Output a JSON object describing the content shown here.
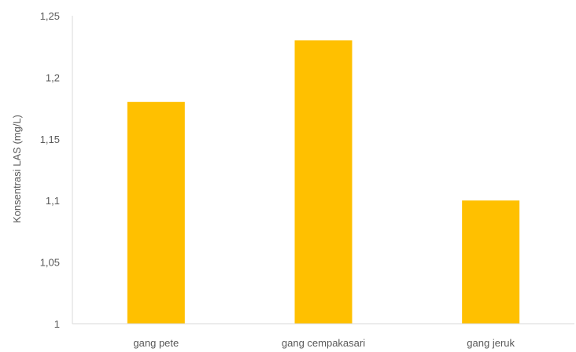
{
  "chart_data": {
    "type": "bar",
    "categories": [
      "gang pete",
      "gang cempakasari",
      "gang jeruk"
    ],
    "values": [
      1.18,
      1.23,
      1.1
    ],
    "title": "",
    "xlabel": "",
    "ylabel": "Konsentrasi LAS (mg/L)",
    "ylim": [
      1,
      1.25
    ],
    "yticks": [
      1,
      1.05,
      1.1,
      1.15,
      1.2,
      1.25
    ],
    "ytick_labels": [
      "1",
      "1,05",
      "1,1",
      "1,15",
      "1,2",
      "1,25"
    ],
    "grid": false,
    "legend": "none",
    "bar_color": "#FFC000",
    "axis_color": "#D9D9D9"
  }
}
